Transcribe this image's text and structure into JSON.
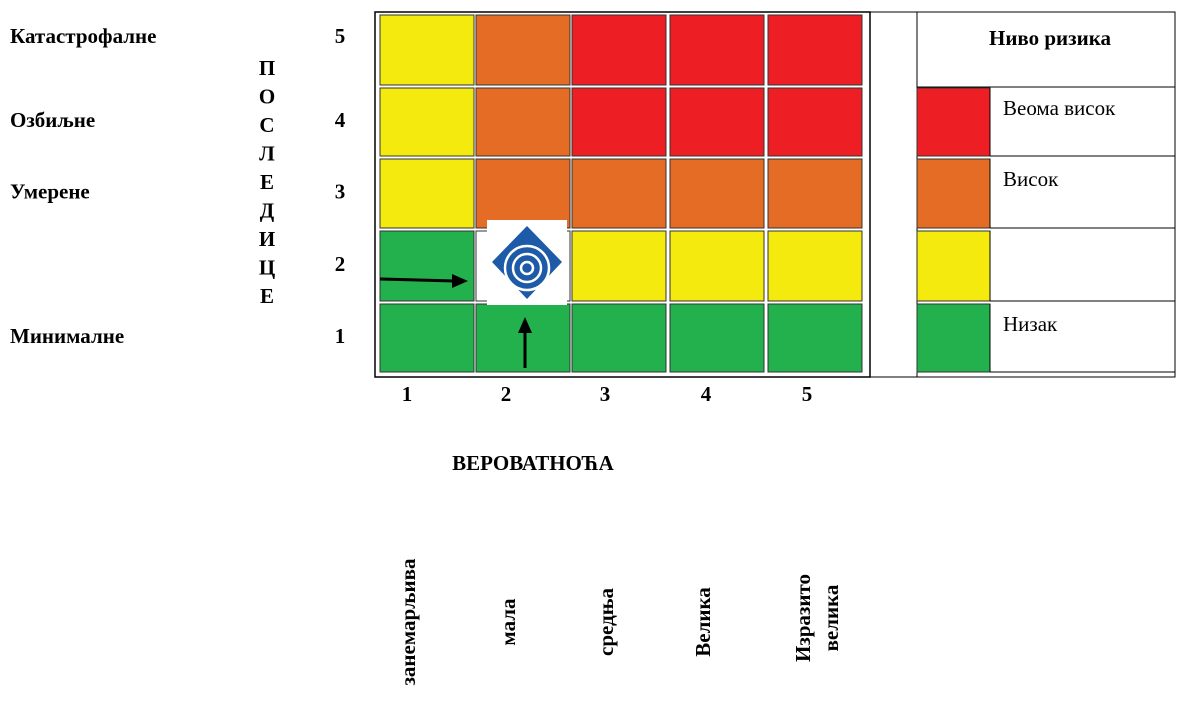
{
  "rows": [
    {
      "severity": "Катастрофалне",
      "level": 5,
      "cells": [
        "#f5ea0e",
        "#e46c24",
        "#ee1f24",
        "#ee1f24",
        "#ee1f24"
      ]
    },
    {
      "severity": "Озбиљне",
      "level": 4,
      "cells": [
        "#f5ea0e",
        "#e46c24",
        "#ee1f24",
        "#ee1f24",
        "#ee1f24"
      ]
    },
    {
      "severity": "Умерене",
      "level": 3,
      "cells": [
        "#f5ea0e",
        "#e46c24",
        "#e46c24",
        "#e46c24",
        "#e46c24"
      ]
    },
    {
      "level": 2,
      "cells": [
        "#22b14c",
        "#ffffff",
        "#f5ea0e",
        "#f5ea0e",
        "#f5ea0e"
      ]
    },
    {
      "severity": "Минималне",
      "level": 1,
      "cells": [
        "#22b14c",
        "#22b14c",
        "#22b14c",
        "#22b14c",
        "#22b14c"
      ]
    }
  ],
  "consequences_label": "ПОСЛЕДИЦЕ",
  "columns": [
    1,
    2,
    3,
    4,
    5
  ],
  "x_title": "ВЕРОВАТНОЋА",
  "likelihood_labels": [
    "занемарљива",
    "мала",
    "средња",
    "Велика",
    [
      "Изразито",
      "велика"
    ]
  ],
  "legend": {
    "title": "Ниво ризика",
    "items": [
      {
        "color": "#ee1f24",
        "label": "Веома висок"
      },
      {
        "color": "#e46c24",
        "label": "Висок"
      },
      {
        "color": "#f5ea0e"
      },
      {
        "color": "#22b14c",
        "label": "Низак"
      }
    ]
  }
}
